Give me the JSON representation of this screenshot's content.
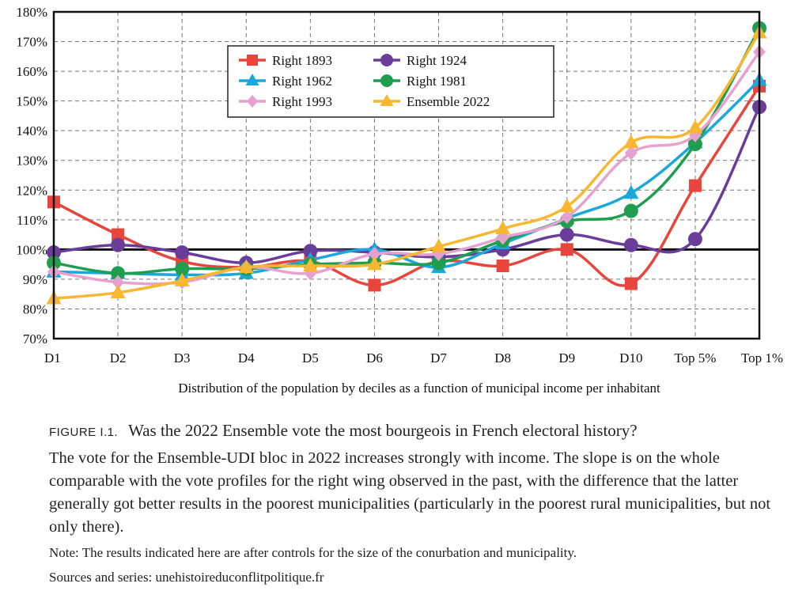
{
  "chart_data": {
    "type": "line",
    "categories": [
      "D1",
      "D2",
      "D3",
      "D4",
      "D5",
      "D6",
      "D7",
      "D8",
      "D9",
      "D10",
      "Top 5%",
      "Top 1%"
    ],
    "xlabel": "Distribution of the population by deciles as a function of municipal income per inhabitant",
    "ylabel": "",
    "ylim": [
      70,
      180
    ],
    "yticks": [
      70,
      80,
      90,
      100,
      110,
      120,
      130,
      140,
      150,
      160,
      170,
      180
    ],
    "ytick_labels": [
      "70%",
      "80%",
      "90%",
      "100%",
      "110%",
      "120%",
      "130%",
      "140%",
      "150%",
      "160%",
      "170%",
      "180%"
    ],
    "reference_line": 100,
    "grid": true,
    "legend_position": "top-center",
    "series": [
      {
        "name": "Right 1893",
        "color": "#e8453c",
        "marker": "square",
        "values": [
          116,
          105,
          96,
          94,
          96,
          88,
          96,
          94.5,
          100,
          88.5,
          121.5,
          155
        ]
      },
      {
        "name": "Right 1924",
        "color": "#6a3d9a",
        "marker": "circle",
        "values": [
          99,
          101.5,
          99,
          95.5,
          99.5,
          99,
          97.5,
          100,
          105,
          101.5,
          103.5,
          148
        ]
      },
      {
        "name": "Right 1962",
        "color": "#1aa7dc",
        "marker": "triangle",
        "values": [
          92.5,
          92,
          91.5,
          92,
          96.5,
          100,
          94,
          102,
          110.5,
          119,
          136,
          157
        ]
      },
      {
        "name": "Right 1981",
        "color": "#1f9e4f",
        "marker": "circle",
        "values": [
          95.5,
          92,
          93.5,
          93.5,
          95,
          95.5,
          95.5,
          103,
          109.5,
          113,
          135.5,
          174.5
        ]
      },
      {
        "name": "Right 1993",
        "color": "#e6a1cf",
        "marker": "diamond",
        "values": [
          92.5,
          89,
          89,
          94,
          92,
          98.5,
          98.5,
          104,
          111,
          132.5,
          138.5,
          166.5
        ]
      },
      {
        "name": "Ensemble 2022",
        "color": "#f7b731",
        "marker": "triangle",
        "values": [
          83.5,
          85.5,
          89.5,
          94,
          94.5,
          95,
          101,
          107,
          114.5,
          136,
          141,
          173
        ]
      }
    ]
  },
  "caption": {
    "figure_label": "FIGURE I.1.",
    "figure_title": "Was the 2022 Ensemble vote the most bourgeois in French electoral history?",
    "description": "The vote for the Ensemble-UDI bloc in 2022 increases strongly with income. The slope is on the whole comparable with the vote profiles for the right wing observed in the past, with the difference that the latter generally got better results in the poorest municipalities (particularly in the poorest rural municipalities, but not only there).",
    "note": "Note: The results indicated here are after controls for the size of the conurbation and municipality.",
    "sources": "Sources and series: unehistoireduconflitpolitique.fr"
  }
}
